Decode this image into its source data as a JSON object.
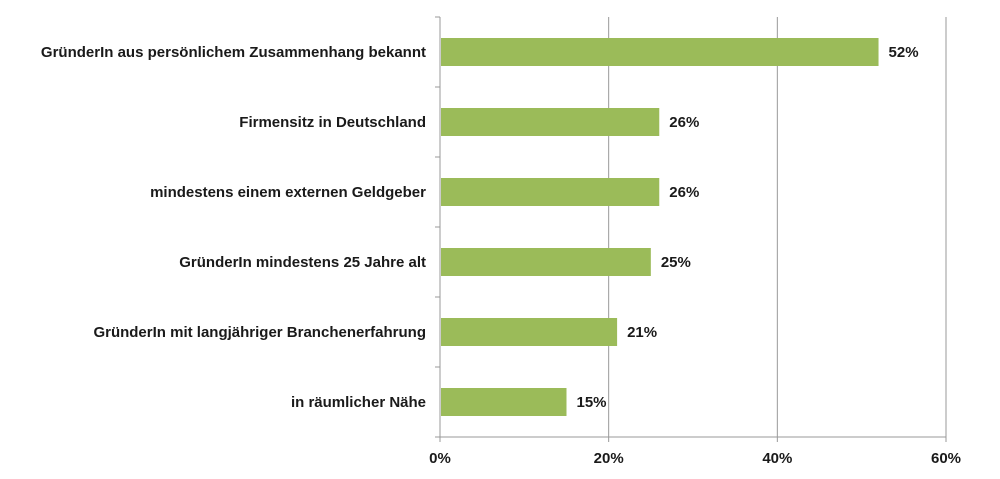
{
  "chart_data": {
    "type": "bar",
    "orientation": "horizontal",
    "categories": [
      "GründerIn aus persönlichem Zusammenhang bekannt",
      "Firmensitz in Deutschland",
      "mindestens einem externen Geldgeber",
      "GründerIn mindestens 25 Jahre alt",
      "GründerIn mit langjähriger Branchenerfahrung",
      "in räumlicher Nähe"
    ],
    "values": [
      52,
      26,
      26,
      25,
      21,
      15
    ],
    "value_labels": [
      "52%",
      "26%",
      "26%",
      "25%",
      "21%",
      "15%"
    ],
    "xlim": [
      0,
      60
    ],
    "x_ticks": [
      0,
      20,
      40,
      60
    ],
    "x_tick_labels": [
      "0%",
      "20%",
      "40%",
      "60%"
    ],
    "grid": "vertical",
    "colors": {
      "bar": "#9bbb59",
      "grid": "#999999",
      "axis": "#999999",
      "text": "#1a1a1a"
    }
  }
}
